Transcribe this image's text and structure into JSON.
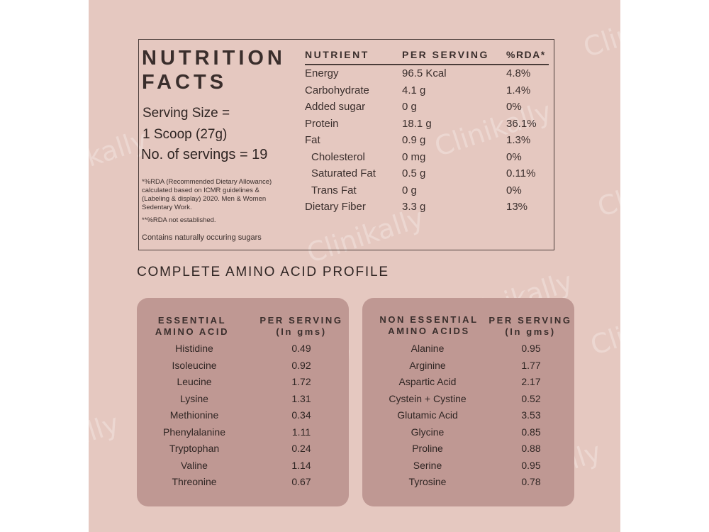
{
  "watermark": "Clinikally",
  "nutrition_facts": {
    "title_line1": "NUTRITION",
    "title_line2": "FACTS",
    "serving_size_line1": "Serving Size =",
    "serving_size_line2": "1 Scoop   (27g)",
    "servings": "No. of servings =  19",
    "footnote_rda": "*%RDA (Recommended Dietary Allowance) calculated based on ICMR guidelines & (Labeling & display) 2020. Men & Women Sedentary Work.",
    "footnote_rda2": "**%RDA not established.",
    "footnote_sugar": "Contains naturally occuring sugars",
    "headers": {
      "nutrient": "NUTRIENT",
      "per_serving": "PER SERVING",
      "rda": "%RDA*"
    },
    "rows": [
      {
        "nutrient": "Energy",
        "per_serving": "96.5 Kcal",
        "rda": "4.8%"
      },
      {
        "nutrient": "Carbohydrate",
        "per_serving": "4.1 g",
        "rda": "1.4%"
      },
      {
        "nutrient": "Added sugar",
        "per_serving": "0 g",
        "rda": "0%"
      },
      {
        "nutrient": "Protein",
        "per_serving": "18.1 g",
        "rda": "36.1%"
      },
      {
        "nutrient": "Fat",
        "per_serving": "0.9 g",
        "rda": "1.3%"
      },
      {
        "nutrient": "Cholesterol",
        "per_serving": "0 mg",
        "rda": "0%"
      },
      {
        "nutrient": "Saturated Fat",
        "per_serving": "0.5 g",
        "rda": "0.11%"
      },
      {
        "nutrient": "Trans Fat",
        "per_serving": "0 g",
        "rda": "0%"
      },
      {
        "nutrient": "Dietary Fiber",
        "per_serving": "3.3 g",
        "rda": "13%"
      }
    ]
  },
  "amino_profile": {
    "title": "COMPLETE AMINO ACID PROFILE",
    "essential": {
      "header_name_1": "ESSENTIAL",
      "header_name_2": "AMINO ACID",
      "header_value_1": "PER SERVING",
      "header_value_2": "(In gms)",
      "rows": [
        {
          "name": "Histidine",
          "value": "0.49"
        },
        {
          "name": "Isoleucine",
          "value": "0.92"
        },
        {
          "name": "Leucine",
          "value": "1.72"
        },
        {
          "name": "Lysine",
          "value": "1.31"
        },
        {
          "name": "Methionine",
          "value": "0.34"
        },
        {
          "name": "Phenylalanine",
          "value": "1.11"
        },
        {
          "name": "Tryptophan",
          "value": "0.24"
        },
        {
          "name": "Valine",
          "value": "1.14"
        },
        {
          "name": "Threonine",
          "value": "0.67"
        }
      ]
    },
    "non_essential": {
      "header_name_1": "NON ESSENTIAL",
      "header_name_2": "AMINO ACIDS",
      "header_value_1": "PER SERVING",
      "header_value_2": "(In gms)",
      "rows": [
        {
          "name": "Alanine",
          "value": "0.95"
        },
        {
          "name": "Arginine",
          "value": "1.77"
        },
        {
          "name": "Aspartic Acid",
          "value": "2.17"
        },
        {
          "name": "Cystein + Cystine",
          "value": "0.52"
        },
        {
          "name": "Glutamic Acid",
          "value": "3.53"
        },
        {
          "name": "Glycine",
          "value": "0.85"
        },
        {
          "name": "Proline",
          "value": "0.88"
        },
        {
          "name": "Serine",
          "value": "0.95"
        },
        {
          "name": "Tyrosine",
          "value": "0.78"
        }
      ]
    }
  }
}
